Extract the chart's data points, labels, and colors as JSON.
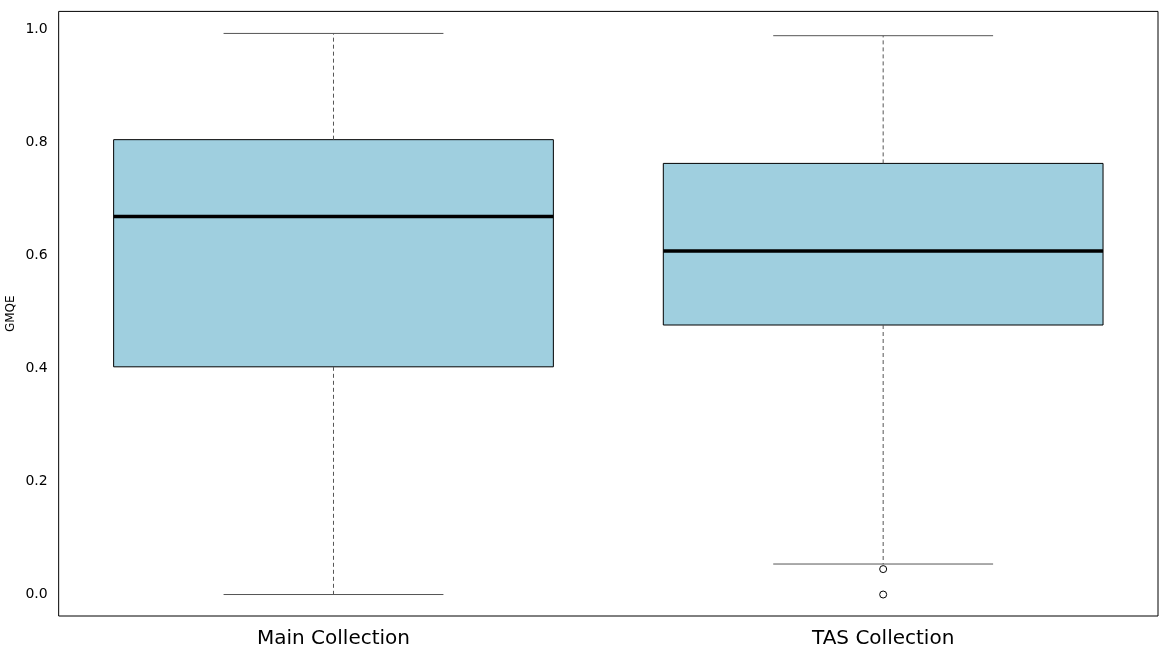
{
  "chart_data": {
    "type": "box",
    "ylabel": "GMQE",
    "categories": [
      "Main Collection",
      "TAS Collection"
    ],
    "color": "#9fcfdf",
    "boxes": [
      {
        "low": 0.0,
        "q1": 0.403,
        "median": 0.669,
        "q3": 0.805,
        "high": 0.993
      },
      {
        "low": 0.054,
        "q1": 0.477,
        "median": 0.608,
        "q3": 0.763,
        "high": 0.989,
        "outliers": [
          0.045,
          0.0
        ]
      }
    ],
    "ylim": [
      -0.038,
      1.032
    ],
    "yticks": [
      {
        "value": 0,
        "label": "0.0"
      },
      0.2,
      0.4,
      0.6,
      0.8,
      {
        "value": 1,
        "label": "1.0"
      }
    ],
    "grid": false,
    "legend": false
  }
}
